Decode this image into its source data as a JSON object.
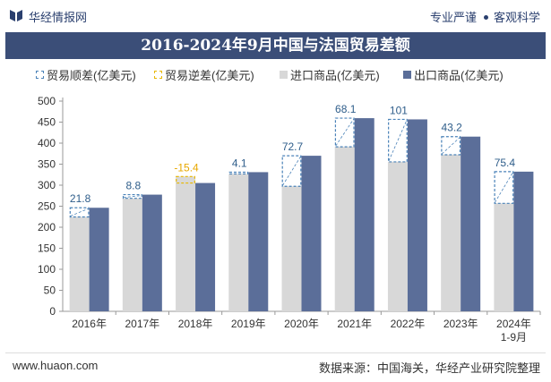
{
  "header": {
    "brand": "华经情报网",
    "slogan_left": "专业严谨",
    "slogan_right": "客观科学"
  },
  "footer": {
    "site": "www.huaon.com",
    "source": "数据来源：中国海关，华经产业研究院整理"
  },
  "colors": {
    "title_bg": "#3b4e78",
    "import": "#d8d8d8",
    "export": "#5b6e99",
    "surplus_stroke": "#4a82b8",
    "deficit_stroke": "#e8b800",
    "deficit_label": "#e8a800",
    "surplus_label": "#2e5d8a"
  },
  "chart_data": {
    "type": "bar",
    "title": "2016-2024年9月中国与法国贸易差额",
    "categories": [
      "2016年",
      "2017年",
      "2018年",
      "2019年",
      "2020年",
      "2021年",
      "2022年",
      "2023年",
      "2024年\n1-9月"
    ],
    "series": [
      {
        "name": "进口商品(亿美元)",
        "values": [
          224.5,
          268.7,
          320.6,
          326.9,
          297.3,
          391.3,
          355.5,
          372.3,
          256.8
        ]
      },
      {
        "name": "出口商品(亿美元)",
        "values": [
          246.3,
          277.5,
          305.2,
          331.0,
          370.0,
          459.4,
          456.5,
          415.5,
          332.2
        ]
      }
    ],
    "balance": [
      21.8,
      8.8,
      -15.4,
      4.1,
      72.7,
      68.1,
      101,
      43.2,
      75.4
    ],
    "balance_labels": [
      "21.8",
      "8.8",
      "-15.4",
      "4.1",
      "72.7",
      "68.1",
      "101",
      "43.2",
      "75.4"
    ],
    "legend": [
      "贸易顺差(亿美元)",
      "贸易逆差(亿美元)",
      "进口商品(亿美元)",
      "出口商品(亿美元)"
    ],
    "y_ticks": [
      "0",
      "50",
      "100",
      "150",
      "200",
      "250",
      "300",
      "350",
      "400",
      "450",
      "500"
    ],
    "ylim": [
      0,
      500
    ],
    "xlabel": "",
    "ylabel": ""
  }
}
